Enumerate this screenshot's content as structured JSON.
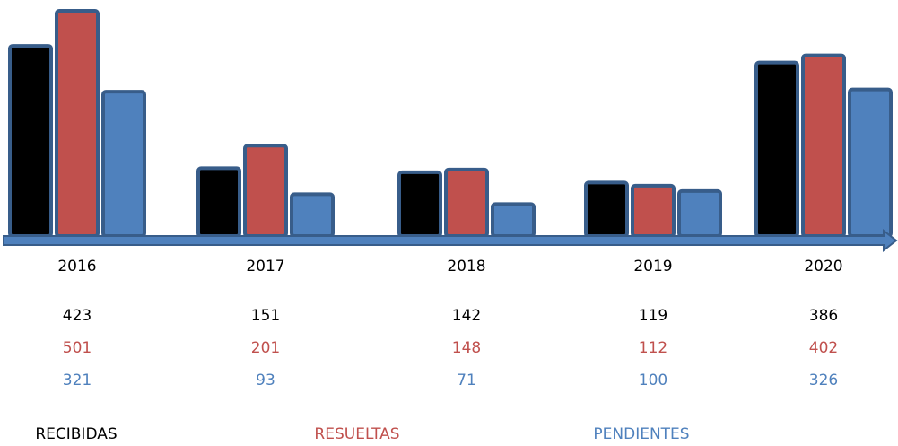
{
  "chart_data": {
    "type": "bar",
    "categories": [
      "2016",
      "2017",
      "2018",
      "2019",
      "2020"
    ],
    "series": [
      {
        "name": "RECIBIDAS",
        "color": "#000000",
        "values": [
          423,
          151,
          142,
          119,
          386
        ]
      },
      {
        "name": "RESUELTAS",
        "color": "#c0504d",
        "values": [
          501,
          201,
          148,
          112,
          402
        ]
      },
      {
        "name": "PENDIENTES",
        "color": "#4f81bd",
        "values": [
          321,
          93,
          71,
          100,
          326
        ]
      }
    ]
  }
}
